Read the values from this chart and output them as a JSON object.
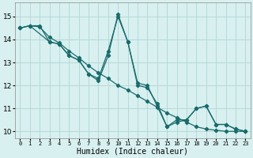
{
  "xlabel": "Humidex (Indice chaleur)",
  "bg_color": "#d8f0f0",
  "grid_color": "#b8d8d8",
  "line_color": "#1a6b6b",
  "xlim": [
    -0.5,
    23.5
  ],
  "ylim": [
    9.7,
    15.6
  ],
  "yticks": [
    10,
    11,
    12,
    13,
    14,
    15
  ],
  "xticks": [
    0,
    1,
    2,
    3,
    4,
    5,
    6,
    7,
    8,
    9,
    10,
    11,
    12,
    13,
    14,
    15,
    16,
    17,
    18,
    19,
    20,
    21,
    22,
    23
  ],
  "series1": [
    [
      0,
      14.5
    ],
    [
      1,
      14.6
    ],
    [
      2,
      14.6
    ],
    [
      3,
      13.9
    ],
    [
      4,
      13.8
    ],
    [
      5,
      13.3
    ],
    [
      6,
      13.1
    ],
    [
      7,
      12.5
    ],
    [
      8,
      12.2
    ],
    [
      9,
      13.3
    ],
    [
      10,
      15.1
    ],
    [
      11,
      13.9
    ],
    [
      12,
      12.1
    ],
    [
      13,
      12.0
    ],
    [
      14,
      11.1
    ],
    [
      15,
      10.2
    ],
    [
      16,
      10.5
    ],
    [
      17,
      10.5
    ],
    [
      18,
      11.0
    ],
    [
      19,
      11.1
    ],
    [
      20,
      10.3
    ],
    [
      21,
      10.3
    ],
    [
      22,
      10.1
    ],
    [
      23,
      10.0
    ]
  ],
  "series2": [
    [
      0,
      14.5
    ],
    [
      1,
      14.6
    ],
    [
      3,
      13.9
    ],
    [
      4,
      13.8
    ],
    [
      5,
      13.3
    ],
    [
      6,
      13.1
    ],
    [
      7,
      12.5
    ],
    [
      8,
      12.3
    ],
    [
      9,
      13.5
    ],
    [
      10,
      15.0
    ],
    [
      11,
      13.9
    ],
    [
      12,
      12.0
    ],
    [
      13,
      11.9
    ],
    [
      14,
      11.2
    ],
    [
      15,
      10.2
    ],
    [
      16,
      10.4
    ],
    [
      17,
      10.5
    ],
    [
      18,
      11.0
    ],
    [
      19,
      11.1
    ],
    [
      20,
      10.3
    ],
    [
      21,
      10.3
    ],
    [
      22,
      10.1
    ],
    [
      23,
      10.0
    ]
  ],
  "series3": [
    [
      0,
      14.5
    ],
    [
      1,
      14.6
    ],
    [
      2,
      14.55
    ],
    [
      3,
      14.1
    ],
    [
      4,
      13.85
    ],
    [
      5,
      13.5
    ],
    [
      6,
      13.2
    ],
    [
      7,
      12.85
    ],
    [
      8,
      12.55
    ],
    [
      9,
      12.3
    ],
    [
      10,
      12.0
    ],
    [
      11,
      11.8
    ],
    [
      12,
      11.55
    ],
    [
      13,
      11.3
    ],
    [
      14,
      11.05
    ],
    [
      15,
      10.8
    ],
    [
      16,
      10.6
    ],
    [
      17,
      10.4
    ],
    [
      18,
      10.2
    ],
    [
      19,
      10.1
    ],
    [
      20,
      10.05
    ],
    [
      21,
      10.0
    ],
    [
      22,
      10.0
    ],
    [
      23,
      10.0
    ]
  ]
}
